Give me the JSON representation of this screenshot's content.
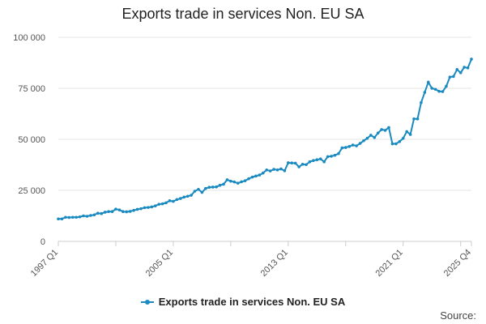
{
  "colors": {
    "series": "#1a8ac0",
    "grid": "#e6e6e6",
    "axis": "#cccccc",
    "text": "#222222"
  },
  "source_label": "Source:",
  "chart_data": {
    "type": "line",
    "title": "Exports trade in services Non. EU SA",
    "xlabel": "",
    "ylabel": "",
    "ylim": [
      0,
      100000
    ],
    "yticks": [
      0,
      25000,
      50000,
      75000,
      100000
    ],
    "ytick_labels": [
      "0",
      "25 000",
      "50 000",
      "75 000",
      "100 000"
    ],
    "xtick_labels": [
      "1997 Q1",
      "2005 Q1",
      "2013 Q1",
      "2021 Q1",
      "2025 Q4"
    ],
    "grid": true,
    "legend_position": "bottom",
    "series": [
      {
        "name": "Exports trade in services Non. EU SA",
        "x": [
          "1997 Q1",
          "1997 Q2",
          "1997 Q3",
          "1997 Q4",
          "1998 Q1",
          "1998 Q2",
          "1998 Q3",
          "1998 Q4",
          "1999 Q1",
          "1999 Q2",
          "1999 Q3",
          "1999 Q4",
          "2000 Q1",
          "2000 Q2",
          "2000 Q3",
          "2000 Q4",
          "2001 Q1",
          "2001 Q2",
          "2001 Q3",
          "2001 Q4",
          "2002 Q1",
          "2002 Q2",
          "2002 Q3",
          "2002 Q4",
          "2003 Q1",
          "2003 Q2",
          "2003 Q3",
          "2003 Q4",
          "2004 Q1",
          "2004 Q2",
          "2004 Q3",
          "2004 Q4",
          "2005 Q1",
          "2005 Q2",
          "2005 Q3",
          "2005 Q4",
          "2006 Q1",
          "2006 Q2",
          "2006 Q3",
          "2006 Q4",
          "2007 Q1",
          "2007 Q2",
          "2007 Q3",
          "2007 Q4",
          "2008 Q1",
          "2008 Q2",
          "2008 Q3",
          "2008 Q4",
          "2009 Q1",
          "2009 Q2",
          "2009 Q3",
          "2009 Q4",
          "2010 Q1",
          "2010 Q2",
          "2010 Q3",
          "2010 Q4",
          "2011 Q1",
          "2011 Q2",
          "2011 Q3",
          "2011 Q4",
          "2012 Q1",
          "2012 Q2",
          "2012 Q3",
          "2012 Q4",
          "2013 Q1",
          "2013 Q2",
          "2013 Q3",
          "2013 Q4",
          "2014 Q1",
          "2014 Q2",
          "2014 Q3",
          "2014 Q4",
          "2015 Q1",
          "2015 Q2",
          "2015 Q3",
          "2015 Q4",
          "2016 Q1",
          "2016 Q2",
          "2016 Q3",
          "2016 Q4",
          "2017 Q1",
          "2017 Q2",
          "2017 Q3",
          "2017 Q4",
          "2018 Q1",
          "2018 Q2",
          "2018 Q3",
          "2018 Q4",
          "2019 Q1",
          "2019 Q2",
          "2019 Q3",
          "2019 Q4",
          "2020 Q1",
          "2020 Q2",
          "2020 Q3",
          "2020 Q4",
          "2021 Q1",
          "2021 Q2",
          "2021 Q3",
          "2021 Q4",
          "2022 Q1",
          "2022 Q2",
          "2022 Q3",
          "2022 Q4",
          "2023 Q1",
          "2023 Q2",
          "2023 Q3",
          "2023 Q4",
          "2024 Q1",
          "2024 Q2",
          "2024 Q3",
          "2024 Q4",
          "2025 Q1",
          "2025 Q2",
          "2025 Q3",
          "2025 Q4"
        ],
        "values": [
          11000,
          11000,
          11800,
          11700,
          11800,
          11800,
          12000,
          12500,
          12300,
          12700,
          13000,
          13800,
          13600,
          14300,
          14600,
          14600,
          15800,
          15400,
          14600,
          14500,
          14700,
          15200,
          15700,
          16000,
          16500,
          16600,
          16900,
          17400,
          18200,
          18400,
          18900,
          19900,
          19600,
          20500,
          21000,
          21700,
          22100,
          22600,
          24600,
          25500,
          24000,
          25900,
          26500,
          26600,
          26700,
          27500,
          28000,
          30200,
          29500,
          29100,
          28500,
          29200,
          29700,
          30700,
          31500,
          32000,
          32500,
          33500,
          35000,
          34500,
          35300,
          35000,
          35500,
          34600,
          38500,
          38400,
          38300,
          36500,
          37800,
          37600,
          39000,
          39600,
          40000,
          40400,
          39000,
          41500,
          41700,
          42200,
          43000,
          45800,
          46000,
          46500,
          47200,
          46800,
          48000,
          49300,
          50500,
          52000,
          50900,
          53100,
          54800,
          54400,
          55800,
          47800,
          47800,
          48900,
          50500,
          53800,
          52400,
          60000,
          60000,
          68000,
          73000,
          78000,
          75000,
          74500,
          73500,
          73400,
          76000,
          80500,
          80800,
          84200,
          82600,
          85300,
          85000,
          89300
        ]
      }
    ]
  }
}
